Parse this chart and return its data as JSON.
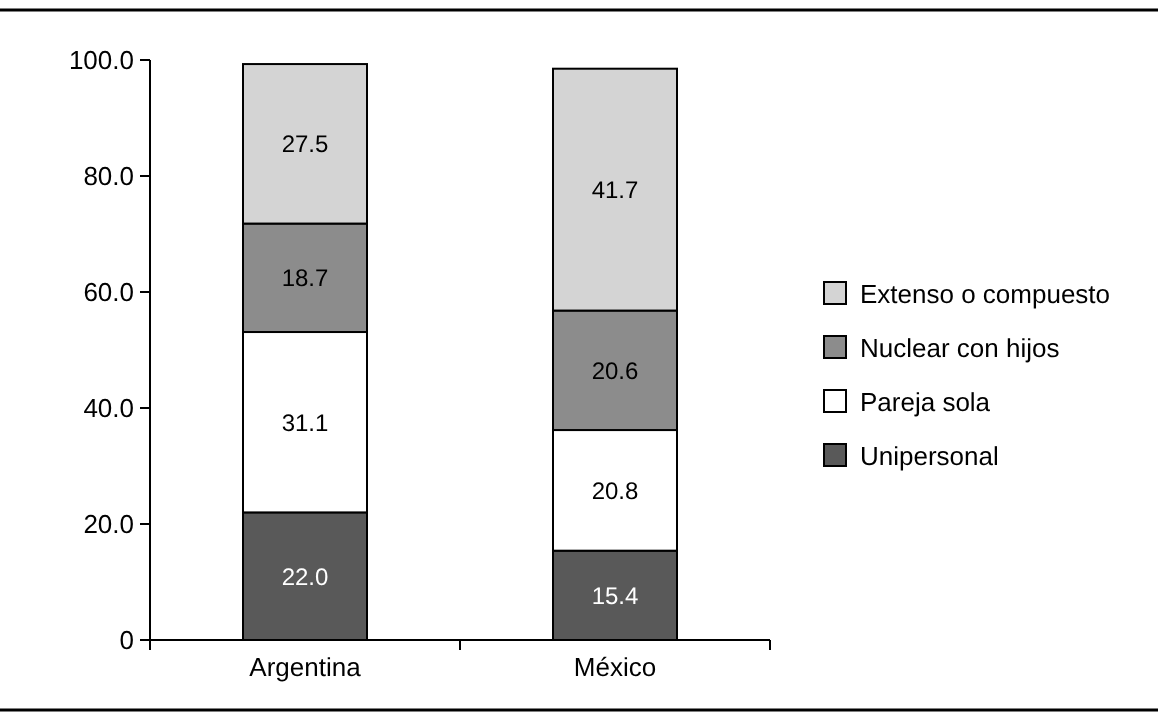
{
  "chart_data": {
    "type": "bar",
    "stacked": true,
    "categories": [
      "Argentina",
      "México"
    ],
    "series": [
      {
        "name": "Unipersonal",
        "color": "#595959",
        "values": [
          22.0,
          15.4
        ],
        "value_labels": [
          "22.0",
          "15.4"
        ]
      },
      {
        "name": "Pareja sola",
        "color": "#ffffff",
        "values": [
          31.1,
          20.8
        ],
        "value_labels": [
          "31.1",
          "20.8"
        ]
      },
      {
        "name": "Nuclear con hijos",
        "color": "#8c8c8c",
        "values": [
          18.7,
          20.6
        ],
        "value_labels": [
          "18.7",
          "20.6"
        ]
      },
      {
        "name": "Extenso o compuesto",
        "color": "#d4d4d4",
        "values": [
          27.5,
          41.7
        ],
        "value_labels": [
          "27.5",
          "41.7"
        ]
      }
    ],
    "ylim": [
      0,
      100
    ],
    "yticks": [
      0,
      {
        "value": 20,
        "label": "20.0"
      },
      {
        "value": 40,
        "label": "40.0"
      },
      {
        "value": 60,
        "label": "60.0"
      },
      {
        "value": 80,
        "label": "80.0"
      },
      {
        "value": 100,
        "label": "100.0"
      }
    ],
    "grid": false,
    "legend": "right"
  }
}
